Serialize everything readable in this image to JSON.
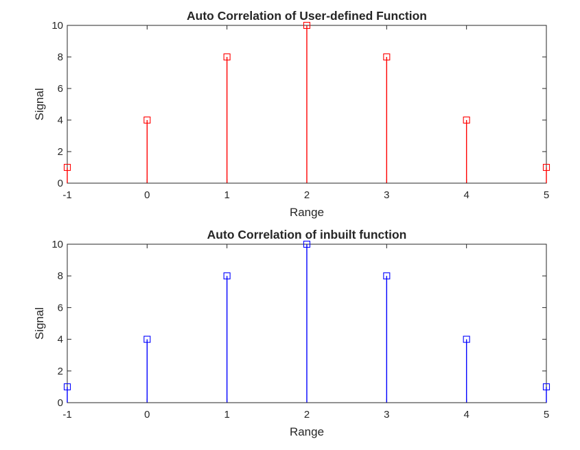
{
  "chart_data": [
    {
      "type": "stem",
      "title": "Auto Correlation of User-defined Function",
      "xlabel": "Range",
      "ylabel": "Signal",
      "xlim": [
        -1,
        5
      ],
      "ylim": [
        0,
        10
      ],
      "xticks": [
        "-1",
        "0",
        "1",
        "2",
        "3",
        "4",
        "5"
      ],
      "yticks": [
        "0",
        "2",
        "4",
        "6",
        "8",
        "10"
      ],
      "grid": false,
      "marker": "square",
      "color": "#ff0000",
      "x": [
        -1,
        0,
        1,
        2,
        3,
        4,
        5
      ],
      "y": [
        1,
        4,
        8,
        10,
        8,
        4,
        1
      ]
    },
    {
      "type": "stem",
      "title": "Auto Correlation of inbuilt function",
      "xlabel": "Range",
      "ylabel": "Signal",
      "xlim": [
        -1,
        5
      ],
      "ylim": [
        0,
        10
      ],
      "xticks": [
        "-1",
        "0",
        "1",
        "2",
        "3",
        "4",
        "5"
      ],
      "yticks": [
        "0",
        "2",
        "4",
        "6",
        "8",
        "10"
      ],
      "grid": false,
      "marker": "square",
      "color": "#0000ff",
      "x": [
        -1,
        0,
        1,
        2,
        3,
        4,
        5
      ],
      "y": [
        1,
        4,
        8,
        10,
        8,
        4,
        1
      ]
    }
  ]
}
